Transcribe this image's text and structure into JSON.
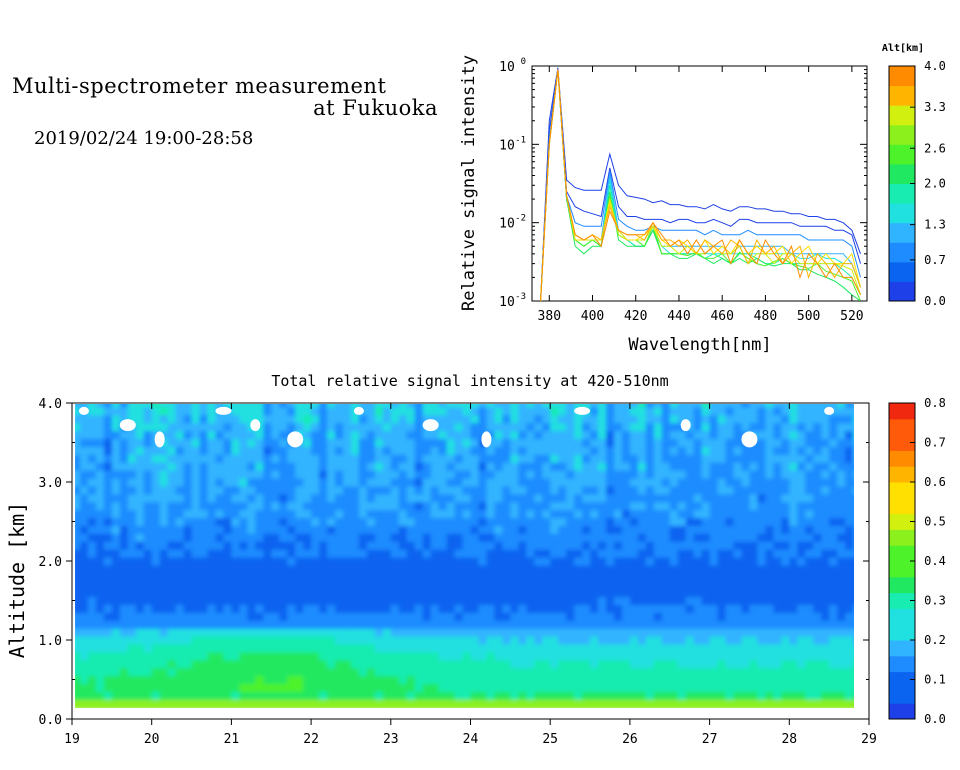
{
  "header": {
    "title_line1": "Multi-spectrometer measurement",
    "title_line2": "at Fukuoka",
    "date_range": "2019/02/24 19:00-28:58"
  },
  "colors": {
    "scale": [
      "#1e40e8",
      "#0a64f0",
      "#1e8cff",
      "#30b4ff",
      "#20e0e0",
      "#18ecb0",
      "#20e860",
      "#4ef22a",
      "#8cf01c",
      "#d2f010",
      "#ffe000",
      "#ffb400",
      "#ff8c00",
      "#ff5a0a",
      "#f02810"
    ]
  },
  "chart_data": [
    {
      "type": "line",
      "xlabel": "Wavelength[nm]",
      "ylabel": "Relative signal intensity",
      "ylog": true,
      "xlim": [
        372,
        527
      ],
      "ylim": [
        0.001,
        1
      ],
      "x_ticks": [
        "380",
        "400",
        "420",
        "440",
        "460",
        "480",
        "500",
        "520"
      ],
      "y_tick_mantissa": [
        "10",
        "10",
        "10",
        "10"
      ],
      "y_tick_exponents": [
        "-3",
        "-2",
        "-1",
        "0"
      ],
      "colorbar": {
        "label": "Alt[km]",
        "ticks": [
          "0.0",
          "0.7",
          "1.3",
          "2.0",
          "2.6",
          "3.3",
          "4.0"
        ],
        "range": [
          0,
          4
        ]
      },
      "x": [
        376,
        380,
        384,
        388,
        392,
        396,
        400,
        404,
        408,
        412,
        416,
        420,
        424,
        428,
        432,
        436,
        440,
        444,
        448,
        452,
        456,
        460,
        464,
        468,
        472,
        476,
        480,
        484,
        488,
        492,
        496,
        500,
        504,
        508,
        512,
        516,
        520,
        524
      ],
      "series": [
        {
          "alt": 0.0,
          "values": [
            0.001,
            0.2,
            0.95,
            0.035,
            0.028,
            0.026,
            0.026,
            0.026,
            0.075,
            0.03,
            0.022,
            0.021,
            0.02,
            0.018,
            0.019,
            0.017,
            0.017,
            0.016,
            0.016,
            0.015,
            0.017,
            0.015,
            0.014,
            0.016,
            0.016,
            0.015,
            0.015,
            0.014,
            0.014,
            0.013,
            0.013,
            0.012,
            0.012,
            0.011,
            0.011,
            0.01,
            0.008,
            0.004
          ]
        },
        {
          "alt": 0.3,
          "values": [
            0.001,
            0.15,
            0.9,
            0.025,
            0.016,
            0.014,
            0.013,
            0.012,
            0.05,
            0.016,
            0.012,
            0.012,
            0.011,
            0.011,
            0.011,
            0.01,
            0.011,
            0.011,
            0.01,
            0.01,
            0.011,
            0.01,
            0.009,
            0.011,
            0.011,
            0.01,
            0.01,
            0.01,
            0.01,
            0.01,
            0.009,
            0.009,
            0.009,
            0.009,
            0.008,
            0.008,
            0.007,
            0.003
          ]
        },
        {
          "alt": 0.7,
          "values": [
            0.001,
            0.12,
            0.9,
            0.022,
            0.01,
            0.009,
            0.009,
            0.009,
            0.045,
            0.011,
            0.009,
            0.008,
            0.008,
            0.009,
            0.008,
            0.008,
            0.008,
            0.008,
            0.008,
            0.007,
            0.008,
            0.007,
            0.007,
            0.007,
            0.008,
            0.007,
            0.007,
            0.007,
            0.007,
            0.007,
            0.007,
            0.006,
            0.006,
            0.006,
            0.006,
            0.006,
            0.005,
            0.002
          ]
        },
        {
          "alt": 1.0,
          "values": [
            0.001,
            0.1,
            0.9,
            0.02,
            0.007,
            0.006,
            0.006,
            0.006,
            0.04,
            0.008,
            0.006,
            0.006,
            0.006,
            0.009,
            0.005,
            0.005,
            0.005,
            0.005,
            0.005,
            0.005,
            0.005,
            0.005,
            0.004,
            0.005,
            0.005,
            0.005,
            0.005,
            0.005,
            0.005,
            0.004,
            0.004,
            0.004,
            0.004,
            0.004,
            0.004,
            0.004,
            0.003,
            0.0015
          ]
        },
        {
          "alt": 1.3,
          "values": [
            0.001,
            0.1,
            0.9,
            0.02,
            0.006,
            0.005,
            0.006,
            0.005,
            0.035,
            0.007,
            0.006,
            0.005,
            0.005,
            0.008,
            0.005,
            0.004,
            0.004,
            0.004,
            0.004,
            0.004,
            0.004,
            0.004,
            0.004,
            0.004,
            0.004,
            0.004,
            0.004,
            0.004,
            0.004,
            0.004,
            0.0035,
            0.0035,
            0.004,
            0.0035,
            0.0035,
            0.003,
            0.003,
            0.0015
          ]
        },
        {
          "alt": 1.7,
          "values": [
            0.001,
            0.1,
            0.9,
            0.02,
            0.006,
            0.005,
            0.006,
            0.005,
            0.03,
            0.007,
            0.006,
            0.005,
            0.005,
            0.008,
            0.004,
            0.004,
            0.004,
            0.004,
            0.004,
            0.0035,
            0.004,
            0.0035,
            0.003,
            0.004,
            0.004,
            0.0035,
            0.003,
            0.003,
            0.0035,
            0.003,
            0.003,
            0.003,
            0.003,
            0.003,
            0.003,
            0.0025,
            0.002,
            0.0012
          ]
        },
        {
          "alt": 2.0,
          "values": [
            0.001,
            0.1,
            0.9,
            0.02,
            0.005,
            0.004,
            0.005,
            0.005,
            0.025,
            0.006,
            0.005,
            0.005,
            0.005,
            0.008,
            0.004,
            0.004,
            0.0035,
            0.0035,
            0.004,
            0.0035,
            0.003,
            0.0035,
            0.003,
            0.0035,
            0.003,
            0.0035,
            0.003,
            0.0028,
            0.003,
            0.003,
            0.0025,
            0.0025,
            0.0022,
            0.002,
            0.0018,
            0.0015,
            0.0012,
            0.001
          ]
        },
        {
          "alt": 2.4,
          "values": [
            0.001,
            0.1,
            0.9,
            0.022,
            0.006,
            0.005,
            0.006,
            0.005,
            0.022,
            0.007,
            0.006,
            0.006,
            0.005,
            0.009,
            0.004,
            0.004,
            0.004,
            0.0038,
            0.0042,
            0.0035,
            0.0035,
            0.004,
            0.003,
            0.0042,
            0.0035,
            0.003,
            0.0028,
            0.0032,
            0.0035,
            0.003,
            0.0028,
            0.0026,
            0.003,
            0.0024,
            0.0022,
            0.002,
            0.0018,
            0.001
          ]
        },
        {
          "alt": 2.8,
          "values": [
            0.001,
            0.1,
            0.9,
            0.022,
            0.006,
            0.006,
            0.006,
            0.006,
            0.02,
            0.007,
            0.006,
            0.006,
            0.006,
            0.009,
            0.005,
            0.005,
            0.004,
            0.005,
            0.004,
            0.004,
            0.005,
            0.004,
            0.004,
            0.005,
            0.003,
            0.004,
            0.004,
            0.003,
            0.004,
            0.004,
            0.003,
            0.003,
            0.003,
            0.003,
            0.003,
            0.0028,
            0.0025,
            0.0012
          ]
        },
        {
          "alt": 3.2,
          "values": [
            0.001,
            0.1,
            0.9,
            0.022,
            0.006,
            0.006,
            0.007,
            0.006,
            0.018,
            0.008,
            0.006,
            0.006,
            0.007,
            0.009,
            0.006,
            0.005,
            0.006,
            0.005,
            0.004,
            0.006,
            0.004,
            0.005,
            0.004,
            0.006,
            0.004,
            0.005,
            0.004,
            0.004,
            0.005,
            0.003,
            0.004,
            0.005,
            0.003,
            0.004,
            0.003,
            0.003,
            0.004,
            0.0015
          ]
        },
        {
          "alt": 3.6,
          "values": [
            0.001,
            0.1,
            0.9,
            0.022,
            0.007,
            0.006,
            0.007,
            0.006,
            0.016,
            0.008,
            0.007,
            0.007,
            0.006,
            0.01,
            0.006,
            0.006,
            0.005,
            0.006,
            0.004,
            0.006,
            0.005,
            0.004,
            0.006,
            0.005,
            0.003,
            0.006,
            0.004,
            0.005,
            0.003,
            0.004,
            0.005,
            0.002,
            0.004,
            0.003,
            0.002,
            0.003,
            0.003,
            0.0015
          ]
        },
        {
          "alt": 4.0,
          "values": [
            0.001,
            0.1,
            0.9,
            0.022,
            0.007,
            0.006,
            0.007,
            0.005,
            0.014,
            0.008,
            0.007,
            0.007,
            0.007,
            0.01,
            0.007,
            0.005,
            0.006,
            0.004,
            0.006,
            0.004,
            0.005,
            0.006,
            0.003,
            0.006,
            0.004,
            0.003,
            0.006,
            0.004,
            0.003,
            0.005,
            0.002,
            0.004,
            0.003,
            0.002,
            0.003,
            0.002,
            0.002,
            0.0012
          ]
        }
      ]
    },
    {
      "type": "heatmap",
      "title": "Total relative signal intensity at 420-510nm",
      "ylabel": "Altitude [km]",
      "xlim": [
        19,
        29
      ],
      "ylim": [
        0,
        4
      ],
      "data_x_range": [
        19,
        28.97
      ],
      "x_ticks": [
        "19",
        "20",
        "21",
        "22",
        "23",
        "24",
        "25",
        "26",
        "27",
        "28",
        "29"
      ],
      "y_ticks": [
        "0.0",
        "1.0",
        "2.0",
        "3.0",
        "4.0"
      ],
      "colorbar": {
        "ticks": [
          "0.0",
          "0.1",
          "0.2",
          "0.3",
          "0.4",
          "0.5",
          "0.6",
          "0.7",
          "0.8"
        ],
        "range": [
          0,
          0.8
        ]
      },
      "profile": {
        "altitude_km": [
          0.15,
          0.2,
          0.4,
          0.7,
          1.0,
          1.2,
          1.6,
          2.0,
          2.5,
          3.0,
          3.5,
          3.9
        ],
        "value": [
          0.45,
          0.33,
          0.32,
          0.28,
          0.22,
          0.12,
          0.08,
          0.1,
          0.14,
          0.16,
          0.17,
          0.2
        ]
      }
    }
  ]
}
